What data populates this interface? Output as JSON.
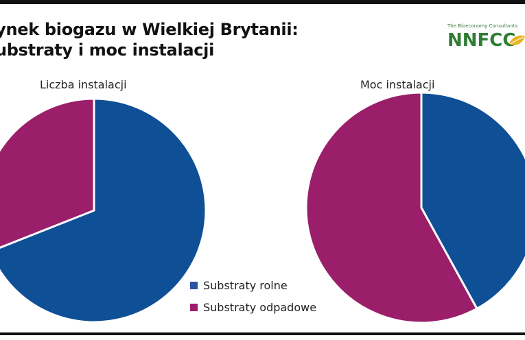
{
  "title_lines": [
    "Rynek biogazu w Wielkiej Brytanii:",
    "Substraty i moc instalacji"
  ],
  "logo": {
    "tagline": "The Bioeconomy Consultants",
    "wordmark": "NNFCC"
  },
  "colors": {
    "rolne": "#0f4f96",
    "odpadowe": "#9b1e6a",
    "leaf": "#e8b422"
  },
  "chart_data": [
    {
      "type": "pie",
      "title": "Liczba instalacji",
      "categories": [
        "Substraty rolne",
        "Substraty odpadowe"
      ],
      "values": [
        69,
        31
      ]
    },
    {
      "type": "pie",
      "title": "Moc instalacji",
      "categories": [
        "Substraty rolne",
        "Substraty odpadowe"
      ],
      "values": [
        42,
        58
      ]
    }
  ],
  "legend": [
    {
      "label": "Substraty rolne",
      "key": "rolne"
    },
    {
      "label": "Substraty odpadowe",
      "key": "odpadowe"
    }
  ]
}
